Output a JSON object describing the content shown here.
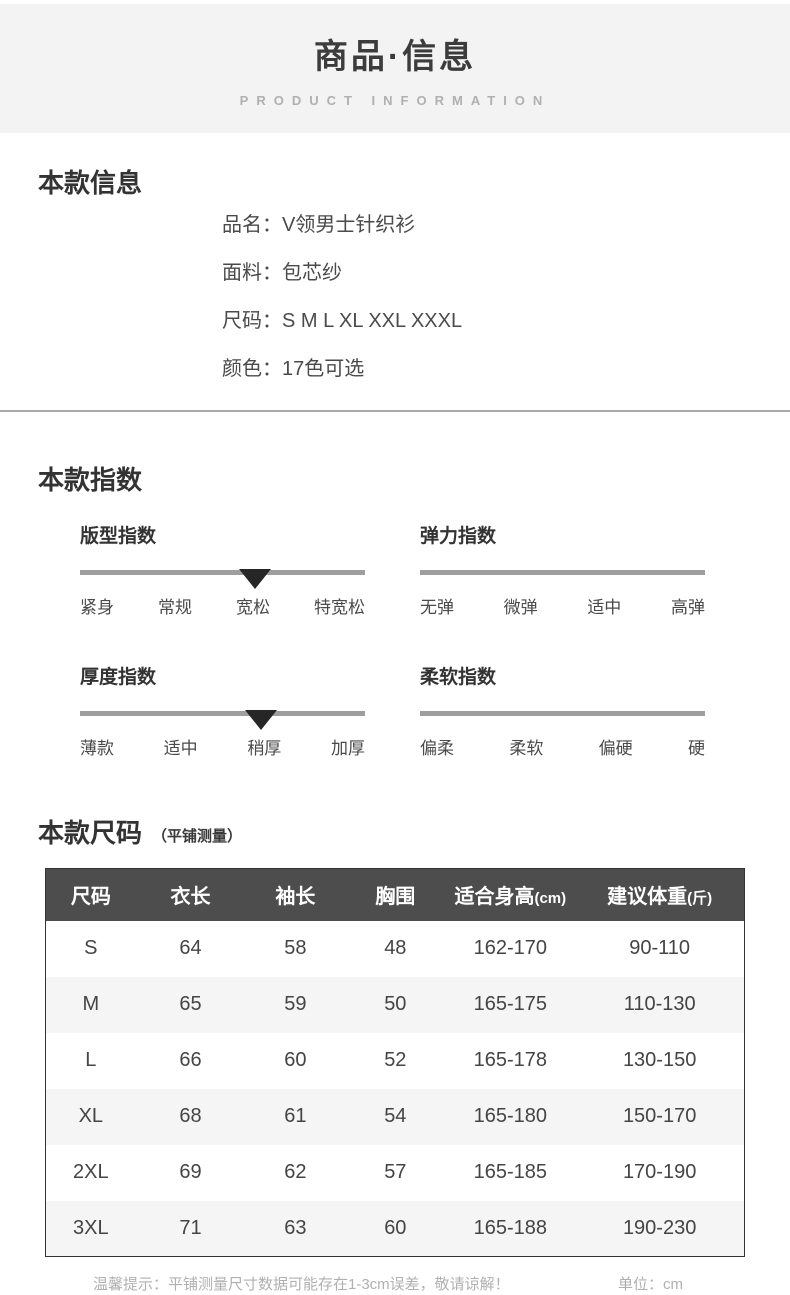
{
  "header": {
    "title": "商品·信息",
    "subtitle": "PRODUCT INFORMATION"
  },
  "info": {
    "heading": "本款信息",
    "rows": [
      {
        "label": "品名：",
        "value": "V领男士针织衫"
      },
      {
        "label": "面料：",
        "value": "包芯纱"
      },
      {
        "label": "尺码：",
        "value": "S M L XL XXL XXXL"
      },
      {
        "label": "颜色：",
        "value": "17色可选"
      }
    ]
  },
  "index_section": {
    "heading": "本款指数",
    "sliders": [
      {
        "title": "版型指数",
        "labels": [
          "紧身",
          "常规",
          "宽松",
          "特宽松"
        ],
        "active": 1
      },
      {
        "title": "弹力指数",
        "labels": [
          "无弹",
          "微弹",
          "适中",
          "高弹"
        ],
        "active": 2
      },
      {
        "title": "厚度指数",
        "labels": [
          "薄款",
          "适中",
          "稍厚",
          "加厚"
        ],
        "active": 1
      },
      {
        "title": "柔软指数",
        "labels": [
          "偏柔",
          "柔软",
          "偏硬",
          "硬"
        ],
        "active": 1
      }
    ]
  },
  "size_section": {
    "heading": "本款尺码",
    "heading_note": "（平铺测量）",
    "table": {
      "columns": [
        {
          "label": "尺码",
          "unit": ""
        },
        {
          "label": "衣长",
          "unit": ""
        },
        {
          "label": "袖长",
          "unit": ""
        },
        {
          "label": "胸围",
          "unit": ""
        },
        {
          "label": "适合身高",
          "unit": "(cm)"
        },
        {
          "label": "建议体重",
          "unit": "(斤)"
        }
      ],
      "rows": [
        [
          "S",
          "64",
          "58",
          "48",
          "162-170",
          "90-110"
        ],
        [
          "M",
          "65",
          "59",
          "50",
          "165-175",
          "110-130"
        ],
        [
          "L",
          "66",
          "60",
          "52",
          "165-178",
          "130-150"
        ],
        [
          "XL",
          "68",
          "61",
          "54",
          "165-180",
          "150-170"
        ],
        [
          "2XL",
          "69",
          "62",
          "57",
          "165-185",
          "170-190"
        ],
        [
          "3XL",
          "71",
          "63",
          "60",
          "165-188",
          "190-230"
        ]
      ]
    },
    "footnote": "温馨提示：平铺测量尺寸数据可能存在1-3cm误差，敬请谅解！",
    "unit_note": "单位：cm"
  },
  "colors": {
    "band_bg": "#f3f3f3",
    "table_header_bg": "#4d4d4d",
    "table_alt_row_bg": "#f5f5f5",
    "bar": "#9e9e9e",
    "marker": "#262626",
    "muted_text": "#b0b0b0"
  }
}
